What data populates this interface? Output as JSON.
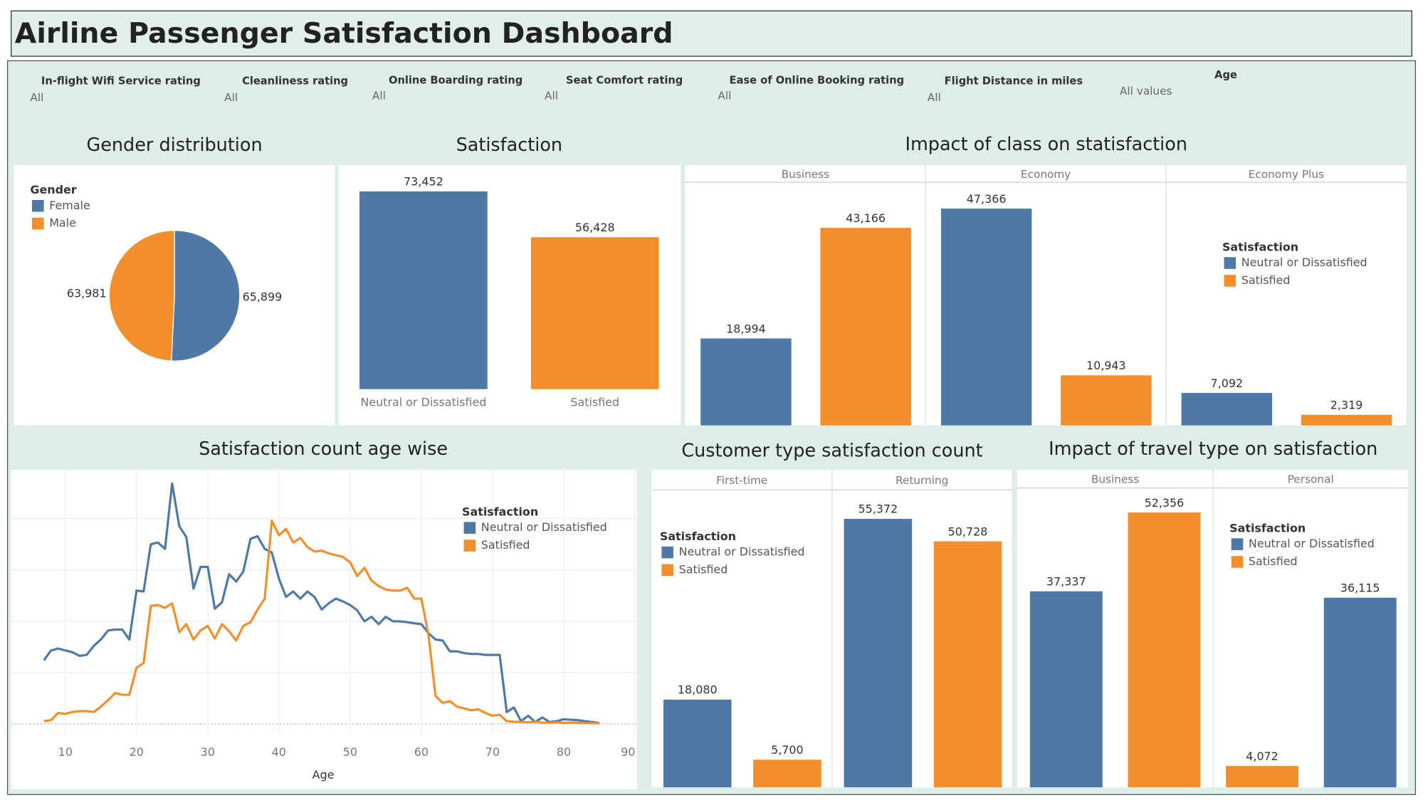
{
  "title": "Airline Passenger Satisfaction Dashboard",
  "filters": [
    {
      "label": "In-flight Wifi Service rating",
      "value": "All"
    },
    {
      "label": "Cleanliness rating",
      "value": "All"
    },
    {
      "label": "Online Boarding rating",
      "value": "All"
    },
    {
      "label": "Seat Comfort rating",
      "value": "All"
    },
    {
      "label": "Ease of Online Booking rating",
      "value": "All"
    },
    {
      "label": "Flight Distance in miles",
      "value": "All"
    },
    {
      "label": "Age",
      "value": "All values"
    }
  ],
  "chart_data": [
    {
      "type": "pie",
      "title": "Gender distribution",
      "legend_title": "Gender",
      "categories": [
        "Female",
        "Male"
      ],
      "values": [
        65899,
        63981
      ],
      "value_labels": [
        "65,899",
        "63,981"
      ],
      "colors": [
        "#4e79a7",
        "#f28e2b"
      ]
    },
    {
      "type": "bar",
      "title": "Satisfaction",
      "categories": [
        "Neutral or Dissatisfied",
        "Satisfied"
      ],
      "values": [
        73452,
        56428
      ],
      "value_labels": [
        "73,452",
        "56,428"
      ],
      "colors": [
        "#4e79a7",
        "#f28e2b"
      ]
    },
    {
      "type": "facetbar",
      "title": "Impact of class on statisfaction",
      "legend_title": "Satisfaction",
      "facets": [
        "Business",
        "Economy",
        "Economy Plus"
      ],
      "series": [
        {
          "name": "Neutral or Dissatisfied",
          "color": "#4e79a7",
          "values": [
            18994,
            47366,
            7092
          ],
          "value_labels": [
            "18,994",
            "47,366",
            "7,092"
          ]
        },
        {
          "name": "Satisfied",
          "color": "#f28e2b",
          "values": [
            43166,
            10943,
            2319
          ],
          "value_labels": [
            "43,166",
            "10,943",
            "2,319"
          ]
        }
      ]
    },
    {
      "type": "line",
      "title": "Satisfaction count age wise",
      "x_label": "Age",
      "legend_title": "Satisfaction",
      "x": [
        7,
        8,
        9,
        10,
        11,
        12,
        13,
        14,
        15,
        16,
        17,
        18,
        19,
        20,
        21,
        22,
        23,
        24,
        25,
        26,
        27,
        28,
        29,
        30,
        31,
        32,
        33,
        34,
        35,
        36,
        37,
        38,
        39,
        40,
        41,
        42,
        43,
        44,
        45,
        46,
        47,
        48,
        49,
        50,
        51,
        52,
        53,
        54,
        55,
        56,
        57,
        58,
        59,
        60,
        61,
        62,
        63,
        64,
        65,
        66,
        67,
        68,
        69,
        70,
        71,
        72,
        73,
        74,
        75,
        76,
        77,
        78,
        79,
        80,
        81,
        82,
        83,
        84,
        85
      ],
      "series": [
        {
          "name": "Neutral or Dissatisfied",
          "color": "#4e79a7",
          "values": [
            618,
            715,
            733,
            715,
            698,
            662,
            671,
            759,
            821,
            909,
            918,
            918,
            821,
            1298,
            1289,
            1748,
            1766,
            1704,
            2340,
            1925,
            1819,
            1316,
            1528,
            1528,
            1121,
            1183,
            1457,
            1386,
            1483,
            1801,
            1828,
            1704,
            1669,
            1413,
            1236,
            1289,
            1219,
            1289,
            1236,
            1113,
            1174,
            1219,
            1192,
            1157,
            1104,
            998,
            1042,
            971,
            1042,
            998,
            998,
            989,
            980,
            971,
            883,
            821,
            812,
            706,
            706,
            689,
            680,
            680,
            671,
            671,
            671,
            115,
            159,
            26,
            79,
            18,
            62,
            18,
            26,
            44,
            40,
            35,
            26,
            18,
            9
          ]
        },
        {
          "name": "Satisfied",
          "color": "#f28e2b",
          "values": [
            26,
            35,
            106,
            97,
            115,
            124,
            124,
            115,
            168,
            230,
            300,
            283,
            283,
            547,
            592,
            1148,
            1157,
            1130,
            1174,
            892,
            971,
            821,
            909,
            954,
            830,
            971,
            901,
            812,
            954,
            989,
            1113,
            1219,
            1978,
            1837,
            1898,
            1766,
            1810,
            1722,
            1678,
            1686,
            1660,
            1642,
            1625,
            1572,
            1439,
            1519,
            1395,
            1342,
            1307,
            1298,
            1298,
            1325,
            1219,
            1219,
            865,
            270,
            203,
            221,
            168,
            150,
            132,
            141,
            106,
            79,
            88,
            26,
            20,
            18,
            15,
            20,
            12,
            10,
            15,
            10,
            12,
            10,
            8,
            6,
            5
          ]
        }
      ],
      "xlim": [
        2.4,
        90.3
      ],
      "xticks": [
        10,
        20,
        30,
        40,
        50,
        60,
        70,
        80,
        90
      ],
      "ylim": [
        0,
        2500
      ],
      "yticks": [
        0,
        500,
        1000,
        1500,
        2000
      ],
      "grid": true
    },
    {
      "type": "facetbar",
      "title": "Customer type satisfaction count",
      "legend_title": "Satisfaction",
      "facets": [
        "First-time",
        "Returning"
      ],
      "series": [
        {
          "name": "Neutral or Dissatisfied",
          "color": "#4e79a7",
          "values": [
            18080,
            55372
          ],
          "value_labels": [
            "18,080",
            "55,372"
          ]
        },
        {
          "name": "Satisfied",
          "color": "#f28e2b",
          "values": [
            5700,
            50728
          ],
          "value_labels": [
            "5,700",
            "50,728"
          ]
        }
      ]
    },
    {
      "type": "facetbar",
      "title": "Impact of travel type on satisfaction",
      "legend_title": "Satisfaction",
      "facets": [
        "Business",
        "Personal"
      ],
      "series": [
        {
          "name": "Neutral or Dissatisfied",
          "color": "#4e79a7",
          "values": [
            37337,
            36115
          ],
          "value_labels": [
            "37,337",
            "36,115"
          ]
        },
        {
          "name": "Satisfied",
          "color": "#f28e2b",
          "values": [
            52356,
            4072
          ],
          "value_labels": [
            "52,356",
            "4,072"
          ]
        }
      ]
    }
  ]
}
